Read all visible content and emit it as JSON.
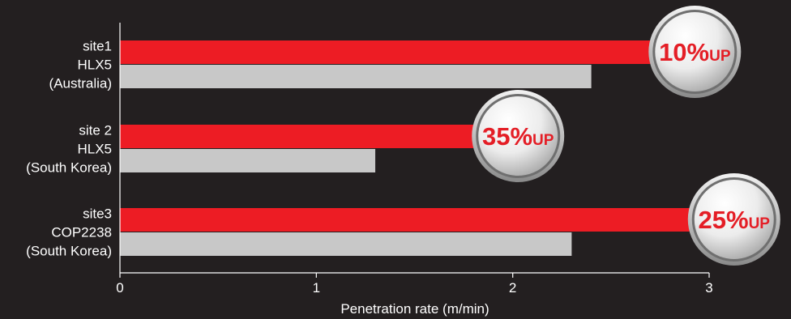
{
  "chart_data": {
    "type": "bar",
    "orientation": "horizontal",
    "categories": [
      [
        "site1",
        "HLX5",
        "(Australia)"
      ],
      [
        "site 2",
        "HLX5",
        "(South Korea)"
      ],
      [
        "site3",
        "COP2238",
        "(South Korea)"
      ]
    ],
    "series": [
      {
        "values": [
          2.7,
          1.8,
          2.9
        ],
        "color": "#ed1c24"
      },
      {
        "values": [
          2.4,
          1.3,
          2.3
        ],
        "color": "#c8c8c8"
      }
    ],
    "annotations": [
      {
        "category_index": 0,
        "value": "10%",
        "suffix": "UP"
      },
      {
        "category_index": 1,
        "value": "35%",
        "suffix": "UP"
      },
      {
        "category_index": 2,
        "value": "25%",
        "suffix": "UP"
      }
    ],
    "xlabel": "Penetration rate (m/min)",
    "xticks": [
      0,
      1,
      2,
      3
    ],
    "xlim": [
      0,
      3
    ],
    "grid": false,
    "colors": {
      "background": "#231f20",
      "axis": "#ffffff",
      "text": "#ffffff",
      "badge_text": "#e41e26"
    }
  }
}
